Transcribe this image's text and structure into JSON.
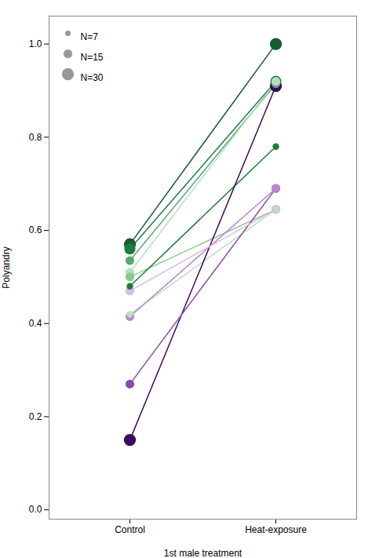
{
  "chart_data": {
    "type": "line",
    "xlabel": "1st male treatment",
    "ylabel": "Polyandry",
    "categories": [
      "Control",
      "Heat-exposure"
    ],
    "series": [
      {
        "values": [
          0.57,
          1.0
        ],
        "color": "#165c2e",
        "size": 11
      },
      {
        "values": [
          0.56,
          0.92
        ],
        "color": "#1e7a3e",
        "size": 10
      },
      {
        "values": [
          0.535,
          0.915
        ],
        "color": "#55aa70",
        "size": 8
      },
      {
        "values": [
          0.51,
          0.92
        ],
        "color": "#b8dfc0",
        "size": 8
      },
      {
        "values": [
          0.5,
          0.645
        ],
        "color": "#88cc88",
        "size": 8
      },
      {
        "values": [
          0.48,
          0.78
        ],
        "color": "#1e7a3e",
        "size": 6
      },
      {
        "values": [
          0.42,
          0.645
        ],
        "color": "#b8dfc0",
        "size": 6
      },
      {
        "values": [
          0.15,
          0.91
        ],
        "color": "#3a0a5e",
        "size": 11
      },
      {
        "values": [
          0.27,
          0.69
        ],
        "color": "#8b4aaa",
        "size": 8
      },
      {
        "values": [
          0.415,
          0.69
        ],
        "color": "#bb88cc",
        "size": 8
      },
      {
        "values": [
          0.47,
          0.645
        ],
        "color": "#ddb8e8",
        "size": 8
      }
    ],
    "marker": "circle",
    "size_legend": {
      "color": "#999999",
      "items": [
        {
          "label": "N=7",
          "size": 5
        },
        {
          "label": "N=15",
          "size": 8
        },
        {
          "label": "N=30",
          "size": 11
        }
      ]
    },
    "legend": "upper left",
    "ylim": [
      -0.02,
      1.06
    ],
    "yticks": [
      {
        "value": 0.0,
        "label": "0.0"
      },
      0.2,
      0.4,
      0.6,
      0.8,
      {
        "value": 1.0,
        "label": "1.0"
      }
    ],
    "grid": false
  }
}
